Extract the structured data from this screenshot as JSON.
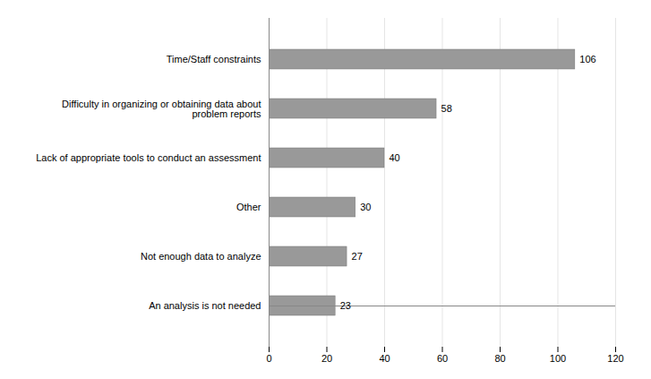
{
  "chart_data": {
    "type": "bar",
    "orientation": "horizontal",
    "categories": [
      "An analysis is not needed",
      "Not enough data to analyze",
      "Other",
      "Lack of appropriate tools to conduct an assessment",
      "Difficulty in organizing or obtaining data about\nproblem reports",
      "Time/Staff constraints"
    ],
    "values": [
      23,
      27,
      30,
      40,
      58,
      106
    ],
    "color": "#999999",
    "xlim": [
      0,
      120
    ],
    "xticks": [
      0,
      20,
      40,
      60,
      80,
      100,
      120
    ],
    "grid": true,
    "data_labels": true
  }
}
